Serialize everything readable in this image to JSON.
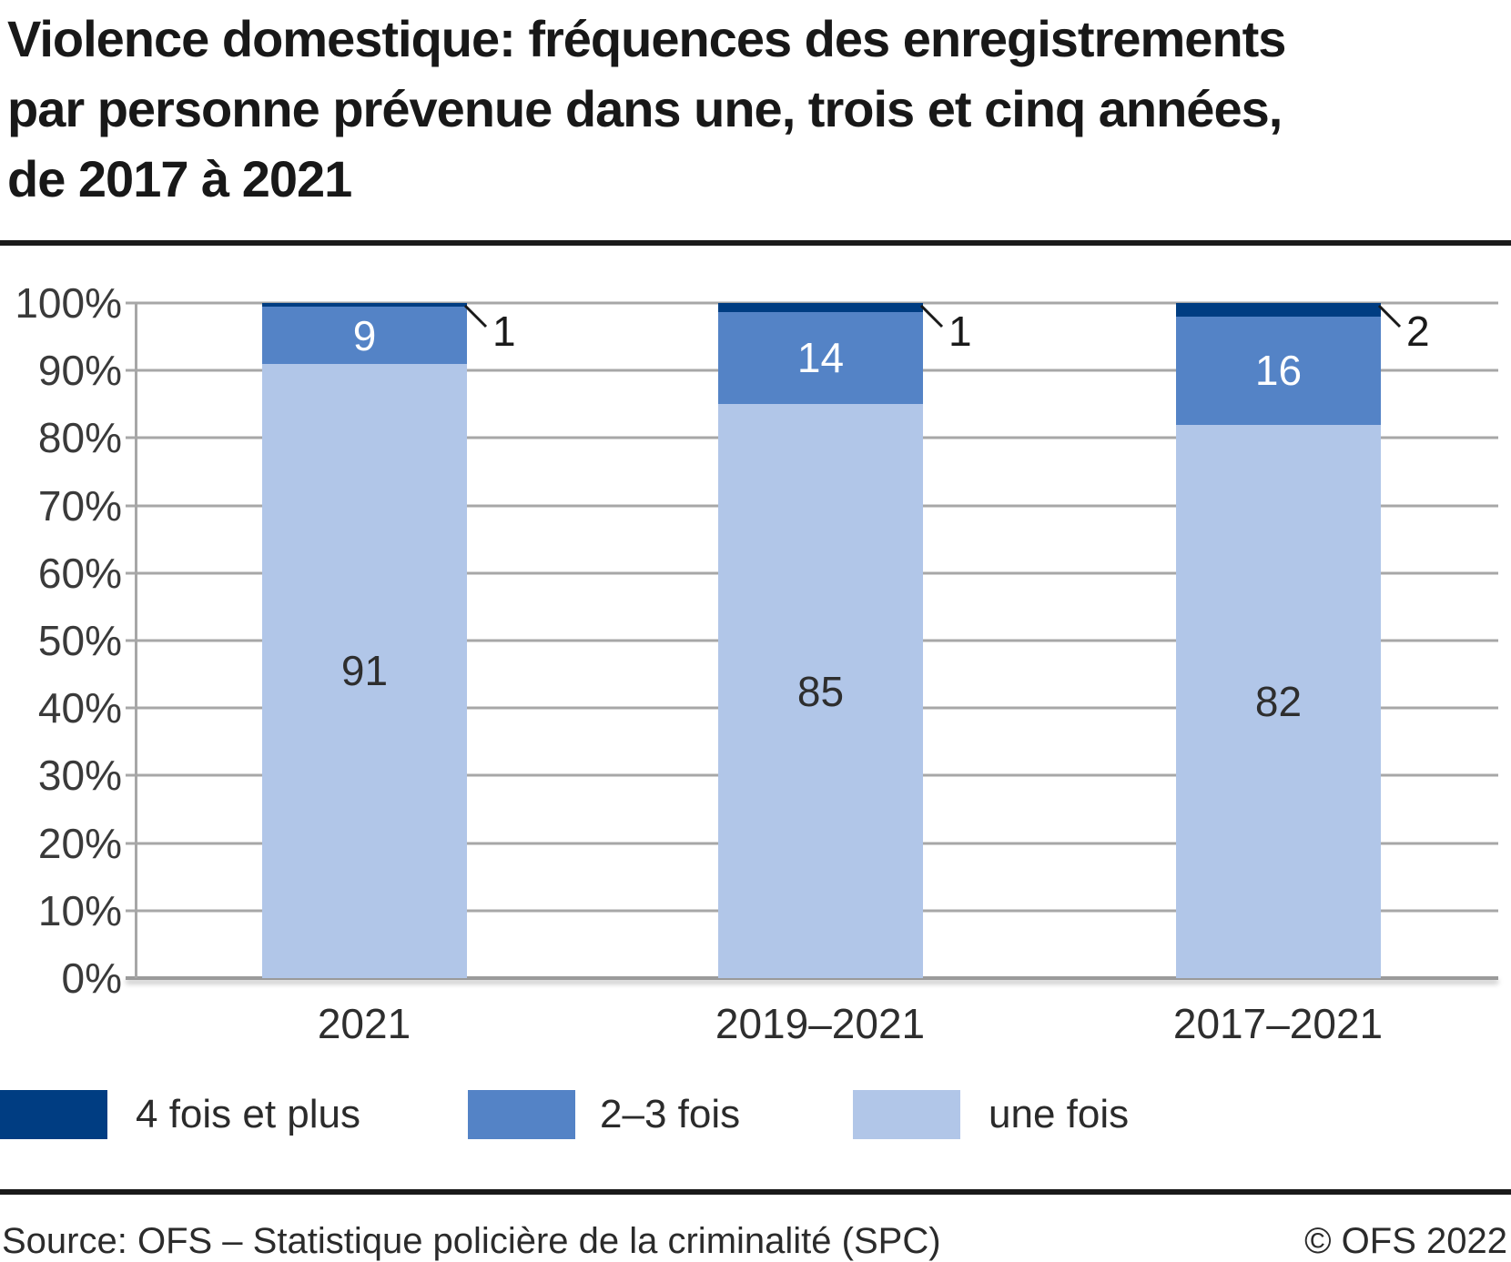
{
  "header": {
    "title_lines": [
      "Violence domestique: fréquences des enregistrements",
      "par personne prévenue dans une, trois et cinq années,",
      "de 2017 à 2021"
    ]
  },
  "chart_data": {
    "type": "bar",
    "subtype": "stacked-percent-column",
    "categories": [
      "2021",
      "2019–2021",
      "2017–2021"
    ],
    "series": [
      {
        "name": "une fois",
        "color": "#b1c6e8",
        "values": [
          91,
          85,
          82
        ]
      },
      {
        "name": "2–3 fois",
        "color": "#5483c6",
        "values": [
          9,
          14,
          16
        ]
      },
      {
        "name": "4 fois et plus",
        "color": "#003d82",
        "values": [
          1,
          1,
          2
        ]
      }
    ],
    "render_heights": [
      [
        91,
        8.4,
        0.6
      ],
      [
        85,
        13.7,
        1.3
      ],
      [
        82,
        16,
        2
      ]
    ],
    "ylabel_ticks": [
      "100%",
      "90%",
      "80%",
      "70%",
      "60%",
      "50%",
      "40%",
      "30%",
      "20%",
      "10%",
      "0%"
    ],
    "ylim": [
      0,
      100
    ],
    "grid": "horizontal-every-10pct",
    "legend_position": "bottom",
    "grid_color": "#a7a7a7",
    "tick_text_color": "#3a3a3a"
  },
  "legend": {
    "items": [
      {
        "label": "4 fois et plus",
        "color": "#003d82"
      },
      {
        "label": "2–3 fois",
        "color": "#5483c6"
      },
      {
        "label": "une fois",
        "color": "#b1c6e8"
      }
    ]
  },
  "footer": {
    "source": "Source: OFS – Statistique policière de la criminalité (SPC)",
    "copyright": "© OFS 2022"
  }
}
